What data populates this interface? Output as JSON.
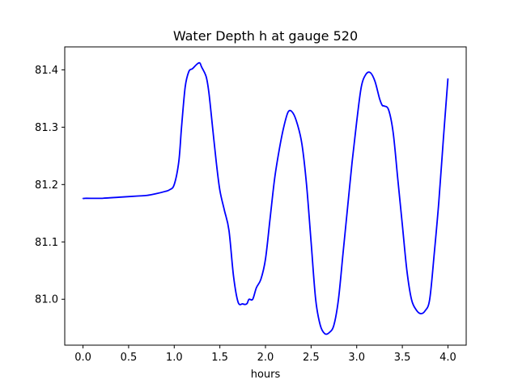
{
  "chart_data": {
    "type": "line",
    "title": "Water Depth h at gauge 520",
    "xlabel": "hours",
    "ylabel": "",
    "xlim": [
      -0.2,
      4.2
    ],
    "ylim": [
      80.92,
      81.44
    ],
    "grid": false,
    "xticks": [
      0.0,
      0.5,
      1.0,
      1.5,
      2.0,
      2.5,
      3.0,
      3.5,
      4.0
    ],
    "xtick_labels": [
      "0.0",
      "0.5",
      "1.0",
      "1.5",
      "2.0",
      "2.5",
      "3.0",
      "3.5",
      "4.0"
    ],
    "yticks": [
      81.0,
      81.1,
      81.2,
      81.3,
      81.4
    ],
    "ytick_labels": [
      "81.0",
      "81.1",
      "81.2",
      "81.3",
      "81.4"
    ],
    "series": [
      {
        "color": "#0000ff",
        "x": [
          0.0,
          0.02,
          0.2,
          0.4,
          0.6,
          0.7,
          0.8,
          0.9,
          0.95,
          1.0,
          1.05,
          1.08,
          1.12,
          1.16,
          1.2,
          1.25,
          1.28,
          1.3,
          1.35,
          1.38,
          1.42,
          1.46,
          1.5,
          1.55,
          1.6,
          1.65,
          1.7,
          1.75,
          1.78,
          1.8,
          1.82,
          1.86,
          1.9,
          1.95,
          2.0,
          2.05,
          2.1,
          2.15,
          2.2,
          2.25,
          2.3,
          2.35,
          2.4,
          2.45,
          2.5,
          2.55,
          2.6,
          2.65,
          2.7,
          2.75,
          2.8,
          2.85,
          2.9,
          2.95,
          3.0,
          3.05,
          3.1,
          3.15,
          3.2,
          3.25,
          3.28,
          3.3,
          3.35,
          3.4,
          3.45,
          3.5,
          3.55,
          3.6,
          3.65,
          3.7,
          3.75,
          3.8,
          3.85,
          3.9,
          3.95,
          4.0
        ],
        "y": [
          81.175,
          81.176,
          81.176,
          81.178,
          81.18,
          81.181,
          81.184,
          81.188,
          81.191,
          81.2,
          81.24,
          81.3,
          81.37,
          81.397,
          81.402,
          81.41,
          81.412,
          81.405,
          81.388,
          81.36,
          81.3,
          81.24,
          81.19,
          81.155,
          81.12,
          81.04,
          80.995,
          80.992,
          80.991,
          80.993,
          81.0,
          81.0,
          81.02,
          81.035,
          81.07,
          81.14,
          81.21,
          81.26,
          81.3,
          81.327,
          81.325,
          81.305,
          81.27,
          81.2,
          81.1,
          81.0,
          80.955,
          80.94,
          80.942,
          80.955,
          81.0,
          81.08,
          81.16,
          81.24,
          81.31,
          81.37,
          81.392,
          81.395,
          81.38,
          81.35,
          81.338,
          81.337,
          81.33,
          81.29,
          81.21,
          81.13,
          81.05,
          81.0,
          80.982,
          80.975,
          80.98,
          81.0,
          81.08,
          81.17,
          81.28,
          81.385
        ]
      }
    ]
  }
}
